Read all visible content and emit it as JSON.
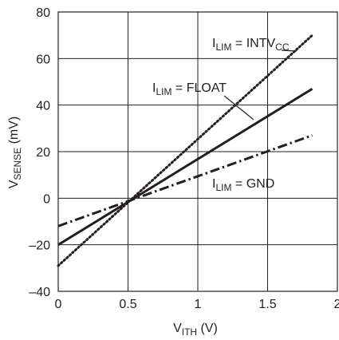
{
  "chart_data": {
    "type": "line",
    "xlabel": {
      "main": "V",
      "sub": "ITH",
      "unit": " (V)"
    },
    "ylabel": {
      "main": "V",
      "sub": "SENSE",
      "unit": " (mV)"
    },
    "xlim": [
      0,
      2
    ],
    "ylim": [
      -40,
      80
    ],
    "xticks": [
      "0",
      "0.5",
      "1",
      "1.5",
      "2"
    ],
    "yticks": [
      "–40",
      "–20",
      "0",
      "20",
      "40",
      "60",
      "80"
    ],
    "grid": true,
    "series": [
      {
        "name": {
          "main": "I",
          "sub": "LIM",
          "rest": " = INTV",
          "sub2": "CC"
        },
        "style": "dotted",
        "x": [
          0,
          1.82
        ],
        "y": [
          -29,
          70
        ]
      },
      {
        "name": {
          "main": "I",
          "sub": "LIM",
          "rest": " = FLOAT",
          "sub2": ""
        },
        "style": "solid",
        "x": [
          0,
          1.82
        ],
        "y": [
          -20,
          47
        ]
      },
      {
        "name": {
          "main": "I",
          "sub": "LIM",
          "rest": " = GND",
          "sub2": ""
        },
        "style": "dashdot",
        "x": [
          0,
          1.82
        ],
        "y": [
          -12,
          27
        ]
      }
    ]
  }
}
